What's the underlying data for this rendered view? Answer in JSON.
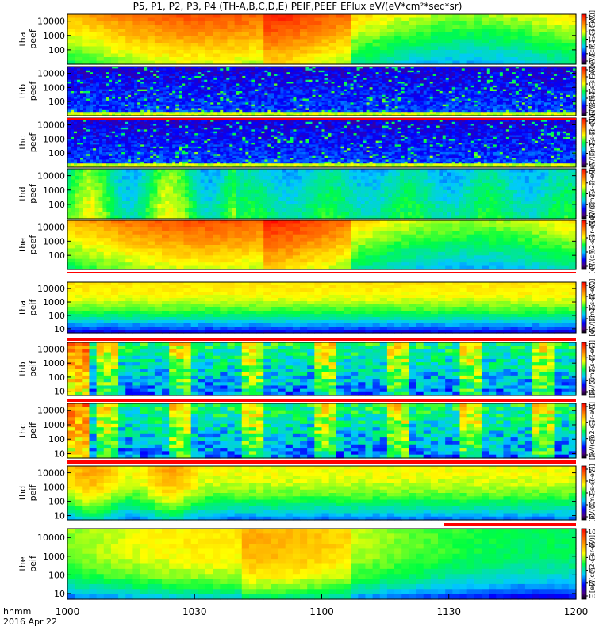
{
  "title": "P5, P1, P2, P3, P4 (TH-A,B,C,D,E) PEIF,PEEF EFlux eV/(eV*cm²*sec*sr)",
  "x_axis_label": "hhmm",
  "date_label": "2016 Apr 22",
  "chart_data": {
    "type": "heatmap",
    "x_ticks": [
      "1000",
      "1030",
      "1100",
      "1130",
      "1200"
    ],
    "x_range": [
      "10:00",
      "12:00"
    ],
    "colorbar_label": "[eV/(cm2-s-sr-eV)]",
    "panels": [
      {
        "name": "tha peef",
        "line1": "tha",
        "line2": "peef",
        "y_ticks": [
          "10000",
          "1000",
          "100"
        ],
        "y_range": [
          10,
          30000
        ],
        "colorbar_ticks": [
          "10⁸",
          "10⁷",
          "10⁶",
          "10⁵",
          "10⁴",
          "10³",
          "10²"
        ],
        "style": "smooth",
        "theme": "warm"
      },
      {
        "name": "thb peef",
        "line1": "thb",
        "line2": "peef",
        "y_ticks": [
          "10000",
          "1000",
          "100"
        ],
        "y_range": [
          10,
          30000
        ],
        "colorbar_ticks": [
          "10⁸",
          "10⁷",
          "10⁶",
          "10⁵",
          "10⁴",
          "10³",
          "10²"
        ],
        "style": "noisy",
        "theme": "cold"
      },
      {
        "name": "thc peef",
        "line1": "thc",
        "line2": "peef",
        "y_ticks": [
          "10000",
          "1000",
          "100"
        ],
        "y_range": [
          10,
          30000
        ],
        "colorbar_ticks": [
          "10¹⁰",
          "10⁸",
          "10⁶",
          "10⁴",
          "10²"
        ],
        "style": "noisy",
        "theme": "cold"
      },
      {
        "name": "thd peef",
        "line1": "thd",
        "line2": "peef",
        "y_ticks": [
          "10000",
          "1000",
          "100"
        ],
        "y_range": [
          10,
          30000
        ],
        "colorbar_ticks": [
          "10¹⁰",
          "10⁸",
          "10⁶",
          "10⁴",
          "10²"
        ],
        "style": "oscillating",
        "theme": "mixed"
      },
      {
        "name": "the peef",
        "line1": "the",
        "line2": "peef",
        "y_ticks": [
          "10000",
          "1000",
          "100"
        ],
        "y_range": [
          10,
          30000
        ],
        "colorbar_ticks": [
          "10⁸",
          "10⁶",
          "10⁴",
          "10²"
        ],
        "style": "smooth",
        "theme": "warm"
      },
      {
        "name": "tha peif",
        "line1": "tha",
        "line2": "peif",
        "y_ticks": [
          "10000",
          "1000",
          "100",
          "10"
        ],
        "y_range": [
          5,
          30000
        ],
        "colorbar_ticks": [
          "10⁷",
          "10⁶",
          "10⁵",
          "10⁴",
          "10³"
        ],
        "style": "layered",
        "theme": "ion"
      },
      {
        "name": "thb peif",
        "line1": "thb",
        "line2": "peif",
        "y_ticks": [
          "10000",
          "1000",
          "100",
          "10"
        ],
        "y_range": [
          5,
          30000
        ],
        "colorbar_ticks": [
          "10⁷",
          "10⁶",
          "10⁵",
          "10⁴",
          "10³"
        ],
        "style": "blocky",
        "theme": "ion-cold"
      },
      {
        "name": "thc peif",
        "line1": "thc",
        "line2": "peif",
        "y_ticks": [
          "10000",
          "1000",
          "100",
          "10"
        ],
        "y_range": [
          5,
          30000
        ],
        "colorbar_ticks": [
          "10⁶",
          "10⁵",
          "10⁴",
          "10³"
        ],
        "style": "blocky",
        "theme": "ion-cold"
      },
      {
        "name": "thd peif",
        "line1": "thd",
        "line2": "peif",
        "y_ticks": [
          "10000",
          "1000",
          "100",
          "10"
        ],
        "y_range": [
          5,
          30000
        ],
        "colorbar_ticks": [
          "10⁷",
          "10⁶",
          "10⁵",
          "10⁴",
          "10³"
        ],
        "style": "layered",
        "theme": "ion-warm"
      },
      {
        "name": "the peif",
        "line1": "the",
        "line2": "peif",
        "y_ticks": [
          "10000",
          "1000",
          "100",
          "10"
        ],
        "y_range": [
          5,
          30000
        ],
        "colorbar_ticks": [
          "10⁷",
          "10⁶",
          "10⁵",
          "10⁴",
          "10³",
          "10²"
        ],
        "style": "smooth",
        "theme": "warm-ion"
      }
    ]
  }
}
